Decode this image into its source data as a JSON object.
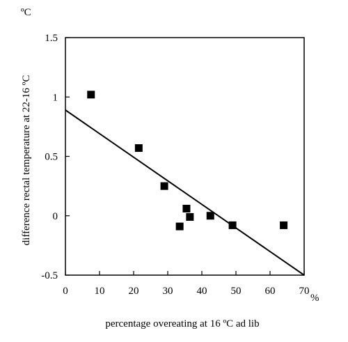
{
  "chart_data": {
    "type": "scatter",
    "title": "",
    "xlabel": "percentage overeating at 16 ºC ad lib",
    "ylabel": "difference rectal temperature at 22-16 ºC",
    "x_unit": "%",
    "y_unit": "ºC",
    "xlim": [
      0,
      70
    ],
    "ylim": [
      -0.5,
      1.5
    ],
    "xticks": [
      "0",
      "10",
      "20",
      "30",
      "40",
      "50",
      "60",
      "70"
    ],
    "yticks": [
      "-0.5",
      "0",
      "0.5",
      "1",
      "1.5"
    ],
    "grid": false,
    "legend": "none",
    "series": [
      {
        "points": [
          [
            7.5,
            1.02
          ],
          [
            21.5,
            0.57
          ],
          [
            29,
            0.25
          ],
          [
            33.5,
            -0.09
          ],
          [
            35.5,
            0.06
          ],
          [
            36.5,
            -0.01
          ],
          [
            42.5,
            0.0
          ],
          [
            49,
            -0.08
          ],
          [
            64,
            -0.08
          ]
        ]
      }
    ],
    "trendline": {
      "x": [
        0,
        70
      ],
      "y": [
        0.89,
        -0.5
      ]
    },
    "marker_color": "#000000",
    "line_color": "#000000"
  }
}
